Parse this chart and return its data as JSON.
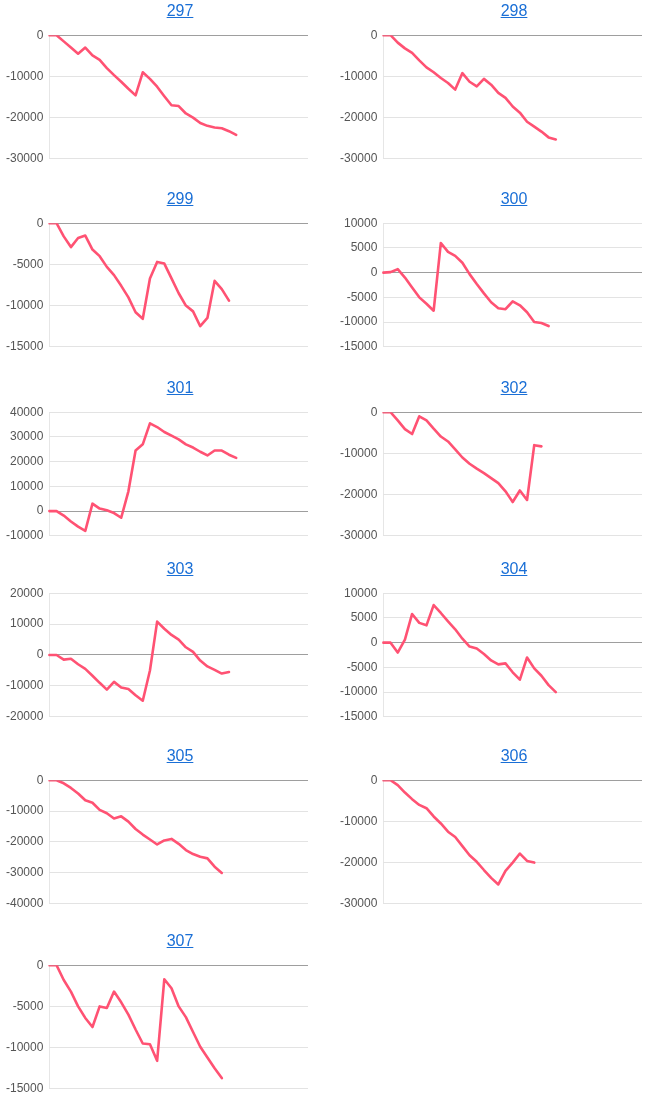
{
  "chart_data": [
    {
      "type": "line",
      "title": "297",
      "categories": [
        null,
        null,
        null,
        null,
        null,
        null,
        null,
        null,
        null,
        null,
        null,
        null,
        null,
        null,
        null,
        null,
        null,
        null,
        null,
        null,
        null,
        null,
        null,
        null,
        null,
        null,
        null,
        null,
        null,
        null,
        null,
        null,
        null,
        null,
        null,
        null,
        null
      ],
      "ylim": [
        -30000,
        0
      ],
      "yticks": [
        -30000,
        -20000,
        -10000,
        0
      ],
      "grid": "y",
      "tick_labels": "y",
      "marker": "none",
      "series": [
        {
          "color": "#ff5273",
          "values": [
            0,
            0,
            -1500,
            -3000,
            -4500,
            -3000,
            -4900,
            -6000,
            -8000,
            -9700,
            -11300,
            -13000,
            -14600,
            -9000,
            -10600,
            -12500,
            -14800,
            -17000,
            -17200,
            -19000,
            -20000,
            -21300,
            -22000,
            -22400,
            -22600,
            -23300,
            -24200,
            null,
            null,
            null,
            null,
            null,
            null,
            null,
            null,
            null,
            null
          ]
        }
      ]
    },
    {
      "type": "line",
      "title": "298",
      "categories": [
        null,
        null,
        null,
        null,
        null,
        null,
        null,
        null,
        null,
        null,
        null,
        null,
        null,
        null,
        null,
        null,
        null,
        null,
        null,
        null,
        null,
        null,
        null,
        null,
        null,
        null,
        null,
        null,
        null,
        null,
        null,
        null,
        null,
        null,
        null,
        null,
        null
      ],
      "ylim": [
        -30000,
        0
      ],
      "yticks": [
        -30000,
        -20000,
        -10000,
        0
      ],
      "grid": "y",
      "tick_labels": "y",
      "marker": "none",
      "series": [
        {
          "color": "#ff5273",
          "values": [
            0,
            0,
            -1800,
            -3200,
            -4300,
            -6100,
            -7800,
            -9000,
            -10400,
            -11600,
            -13200,
            -9200,
            -11300,
            -12400,
            -10600,
            -12000,
            -14000,
            -15200,
            -17300,
            -18800,
            -21000,
            -22200,
            -23400,
            -24800,
            -25300,
            null,
            null,
            null,
            null,
            null,
            null,
            null,
            null,
            null,
            null,
            null,
            null
          ]
        }
      ]
    },
    {
      "type": "line",
      "title": "299",
      "categories": [
        null,
        null,
        null,
        null,
        null,
        null,
        null,
        null,
        null,
        null,
        null,
        null,
        null,
        null,
        null,
        null,
        null,
        null,
        null,
        null,
        null,
        null,
        null,
        null,
        null,
        null,
        null,
        null,
        null,
        null,
        null,
        null,
        null,
        null,
        null,
        null,
        null
      ],
      "ylim": [
        -15000,
        0
      ],
      "yticks": [
        -15000,
        -10000,
        -5000,
        0
      ],
      "grid": "y",
      "tick_labels": "y",
      "marker": "none",
      "series": [
        {
          "color": "#ff5273",
          "values": [
            0,
            0,
            -1600,
            -2900,
            -1800,
            -1500,
            -3200,
            -4000,
            -5300,
            -6300,
            -7600,
            -9000,
            -10800,
            -11600,
            -6700,
            -4700,
            -4900,
            -6700,
            -8500,
            -10000,
            -10700,
            -12500,
            -11500,
            -7000,
            -8000,
            -9400,
            null,
            null,
            null,
            null,
            null,
            null,
            null,
            null,
            null,
            null,
            null
          ]
        }
      ]
    },
    {
      "type": "line",
      "title": "300",
      "categories": [
        null,
        null,
        null,
        null,
        null,
        null,
        null,
        null,
        null,
        null,
        null,
        null,
        null,
        null,
        null,
        null,
        null,
        null,
        null,
        null,
        null,
        null,
        null,
        null,
        null,
        null,
        null,
        null,
        null,
        null,
        null,
        null,
        null,
        null,
        null,
        null,
        null
      ],
      "ylim": [
        -15000,
        10000
      ],
      "yticks": [
        -15000,
        -10000,
        -5000,
        0,
        5000,
        10000
      ],
      "grid": "y",
      "tick_labels": "y",
      "marker": "none",
      "series": [
        {
          "color": "#ff5273",
          "values": [
            0,
            100,
            700,
            -1000,
            -3000,
            -5000,
            -6300,
            -7700,
            6000,
            4200,
            3400,
            2000,
            -300,
            -2300,
            -4200,
            -6000,
            -7200,
            -7400,
            -5800,
            -6600,
            -8000,
            -10000,
            -10200,
            -10800,
            null,
            null,
            null,
            null,
            null,
            null,
            null,
            null,
            null,
            null,
            null,
            null,
            null
          ]
        }
      ]
    },
    {
      "type": "line",
      "title": "301",
      "categories": [
        null,
        null,
        null,
        null,
        null,
        null,
        null,
        null,
        null,
        null,
        null,
        null,
        null,
        null,
        null,
        null,
        null,
        null,
        null,
        null,
        null,
        null,
        null,
        null,
        null,
        null,
        null,
        null,
        null,
        null,
        null,
        null,
        null,
        null,
        null,
        null,
        null
      ],
      "ylim": [
        -10000,
        40000
      ],
      "yticks": [
        -10000,
        0,
        10000,
        20000,
        30000,
        40000
      ],
      "grid": "y",
      "tick_labels": "y",
      "marker": "none",
      "series": [
        {
          "color": "#ff5273",
          "values": [
            0,
            0,
            -1800,
            -4200,
            -6300,
            -8000,
            3000,
            1000,
            300,
            -800,
            -2700,
            8000,
            24500,
            27000,
            35500,
            34000,
            32000,
            30500,
            29000,
            27000,
            25700,
            24000,
            22500,
            24500,
            24500,
            22800,
            21500,
            null,
            null,
            null,
            null,
            null,
            null,
            null,
            null,
            null,
            null
          ]
        }
      ]
    },
    {
      "type": "line",
      "title": "302",
      "categories": [
        null,
        null,
        null,
        null,
        null,
        null,
        null,
        null,
        null,
        null,
        null,
        null,
        null,
        null,
        null,
        null,
        null,
        null,
        null,
        null,
        null,
        null,
        null,
        null,
        null,
        null,
        null,
        null,
        null,
        null,
        null,
        null,
        null,
        null,
        null,
        null,
        null
      ],
      "ylim": [
        -30000,
        0
      ],
      "yticks": [
        -30000,
        -20000,
        -10000,
        0
      ],
      "grid": "y",
      "tick_labels": "y",
      "marker": "none",
      "series": [
        {
          "color": "#ff5273",
          "values": [
            0,
            0,
            -2000,
            -4100,
            -5300,
            -1000,
            -2000,
            -4000,
            -5900,
            -7100,
            -9000,
            -11000,
            -12500,
            -13700,
            -14800,
            -16000,
            -17200,
            -19200,
            -21800,
            -19000,
            -21300,
            -8000,
            -8300,
            null,
            null,
            null,
            null,
            null,
            null,
            null,
            null,
            null,
            null,
            null,
            null,
            null,
            null
          ]
        }
      ]
    },
    {
      "type": "line",
      "title": "303",
      "categories": [
        null,
        null,
        null,
        null,
        null,
        null,
        null,
        null,
        null,
        null,
        null,
        null,
        null,
        null,
        null,
        null,
        null,
        null,
        null,
        null,
        null,
        null,
        null,
        null,
        null,
        null,
        null,
        null,
        null,
        null,
        null,
        null,
        null,
        null,
        null,
        null,
        null
      ],
      "ylim": [
        -20000,
        20000
      ],
      "yticks": [
        -20000,
        -10000,
        0,
        10000,
        20000
      ],
      "grid": "y",
      "tick_labels": "y",
      "marker": "none",
      "series": [
        {
          "color": "#ff5273",
          "values": [
            0,
            0,
            -1500,
            -1200,
            -3000,
            -4500,
            -6700,
            -9000,
            -11200,
            -8700,
            -10500,
            -11000,
            -13000,
            -14800,
            -5000,
            10800,
            8500,
            6500,
            5000,
            2500,
            1000,
            -1800,
            -3700,
            -4800,
            -6000,
            -5500,
            null,
            null,
            null,
            null,
            null,
            null,
            null,
            null,
            null,
            null,
            null
          ]
        }
      ]
    },
    {
      "type": "line",
      "title": "304",
      "categories": [
        null,
        null,
        null,
        null,
        null,
        null,
        null,
        null,
        null,
        null,
        null,
        null,
        null,
        null,
        null,
        null,
        null,
        null,
        null,
        null,
        null,
        null,
        null,
        null,
        null,
        null,
        null,
        null,
        null,
        null,
        null,
        null,
        null,
        null,
        null,
        null,
        null
      ],
      "ylim": [
        -15000,
        10000
      ],
      "yticks": [
        -15000,
        -10000,
        -5000,
        0,
        5000,
        10000
      ],
      "grid": "y",
      "tick_labels": "y",
      "marker": "none",
      "series": [
        {
          "color": "#ff5273",
          "values": [
            0,
            0,
            -2000,
            600,
            5800,
            4000,
            3500,
            7600,
            6000,
            4300,
            2700,
            800,
            -800,
            -1200,
            -2300,
            -3600,
            -4400,
            -4200,
            -6000,
            -7500,
            -3000,
            -5200,
            -6700,
            -8600,
            -10000,
            null,
            null,
            null,
            null,
            null,
            null,
            null,
            null,
            null,
            null,
            null,
            null
          ]
        }
      ]
    },
    {
      "type": "line",
      "title": "305",
      "categories": [
        null,
        null,
        null,
        null,
        null,
        null,
        null,
        null,
        null,
        null,
        null,
        null,
        null,
        null,
        null,
        null,
        null,
        null,
        null,
        null,
        null,
        null,
        null,
        null,
        null,
        null,
        null,
        null,
        null,
        null,
        null,
        null,
        null,
        null,
        null,
        null,
        null
      ],
      "ylim": [
        -40000,
        0
      ],
      "yticks": [
        -40000,
        -30000,
        -20000,
        -10000,
        0
      ],
      "grid": "y",
      "tick_labels": "y",
      "marker": "none",
      "series": [
        {
          "color": "#ff5273",
          "values": [
            0,
            0,
            -1000,
            -2500,
            -4300,
            -6500,
            -7300,
            -9600,
            -10700,
            -12400,
            -11700,
            -13400,
            -15800,
            -17600,
            -19200,
            -20800,
            -19500,
            -19000,
            -20600,
            -22600,
            -23900,
            -24800,
            -25300,
            -28000,
            -30000,
            null,
            null,
            null,
            null,
            null,
            null,
            null,
            null,
            null,
            null,
            null,
            null
          ]
        }
      ]
    },
    {
      "type": "line",
      "title": "306",
      "categories": [
        null,
        null,
        null,
        null,
        null,
        null,
        null,
        null,
        null,
        null,
        null,
        null,
        null,
        null,
        null,
        null,
        null,
        null,
        null,
        null,
        null,
        null,
        null,
        null,
        null,
        null,
        null,
        null,
        null,
        null,
        null,
        null,
        null,
        null,
        null,
        null,
        null
      ],
      "ylim": [
        -30000,
        0
      ],
      "yticks": [
        -30000,
        -20000,
        -10000,
        0
      ],
      "grid": "y",
      "tick_labels": "y",
      "marker": "none",
      "series": [
        {
          "color": "#ff5273",
          "values": [
            0,
            0,
            -1200,
            -3000,
            -4600,
            -6000,
            -6800,
            -8800,
            -10500,
            -12500,
            -13800,
            -16000,
            -18200,
            -19800,
            -21800,
            -23700,
            -25300,
            -22000,
            -20000,
            -17800,
            -19600,
            -20000,
            null,
            null,
            null,
            null,
            null,
            null,
            null,
            null,
            null,
            null,
            null,
            null,
            null,
            null,
            null
          ]
        }
      ]
    },
    {
      "type": "line",
      "title": "307",
      "categories": [
        null,
        null,
        null,
        null,
        null,
        null,
        null,
        null,
        null,
        null,
        null,
        null,
        null,
        null,
        null,
        null,
        null,
        null,
        null,
        null,
        null,
        null,
        null,
        null,
        null,
        null,
        null,
        null,
        null,
        null,
        null,
        null,
        null,
        null,
        null,
        null,
        null
      ],
      "ylim": [
        -15000,
        0
      ],
      "yticks": [
        -15000,
        -10000,
        -5000,
        0
      ],
      "grid": "y",
      "tick_labels": "y",
      "marker": "none",
      "series": [
        {
          "color": "#ff5273",
          "values": [
            0,
            0,
            -1800,
            -3200,
            -5000,
            -6400,
            -7500,
            -5000,
            -5200,
            -3200,
            -4500,
            -6000,
            -7800,
            -9500,
            -9600,
            -11600,
            -1700,
            -2800,
            -5000,
            -6300,
            -8100,
            -9900,
            -11200,
            -12500,
            -13700,
            null,
            null,
            null,
            null,
            null,
            null,
            null,
            null,
            null,
            null,
            null,
            null
          ]
        }
      ]
    }
  ]
}
